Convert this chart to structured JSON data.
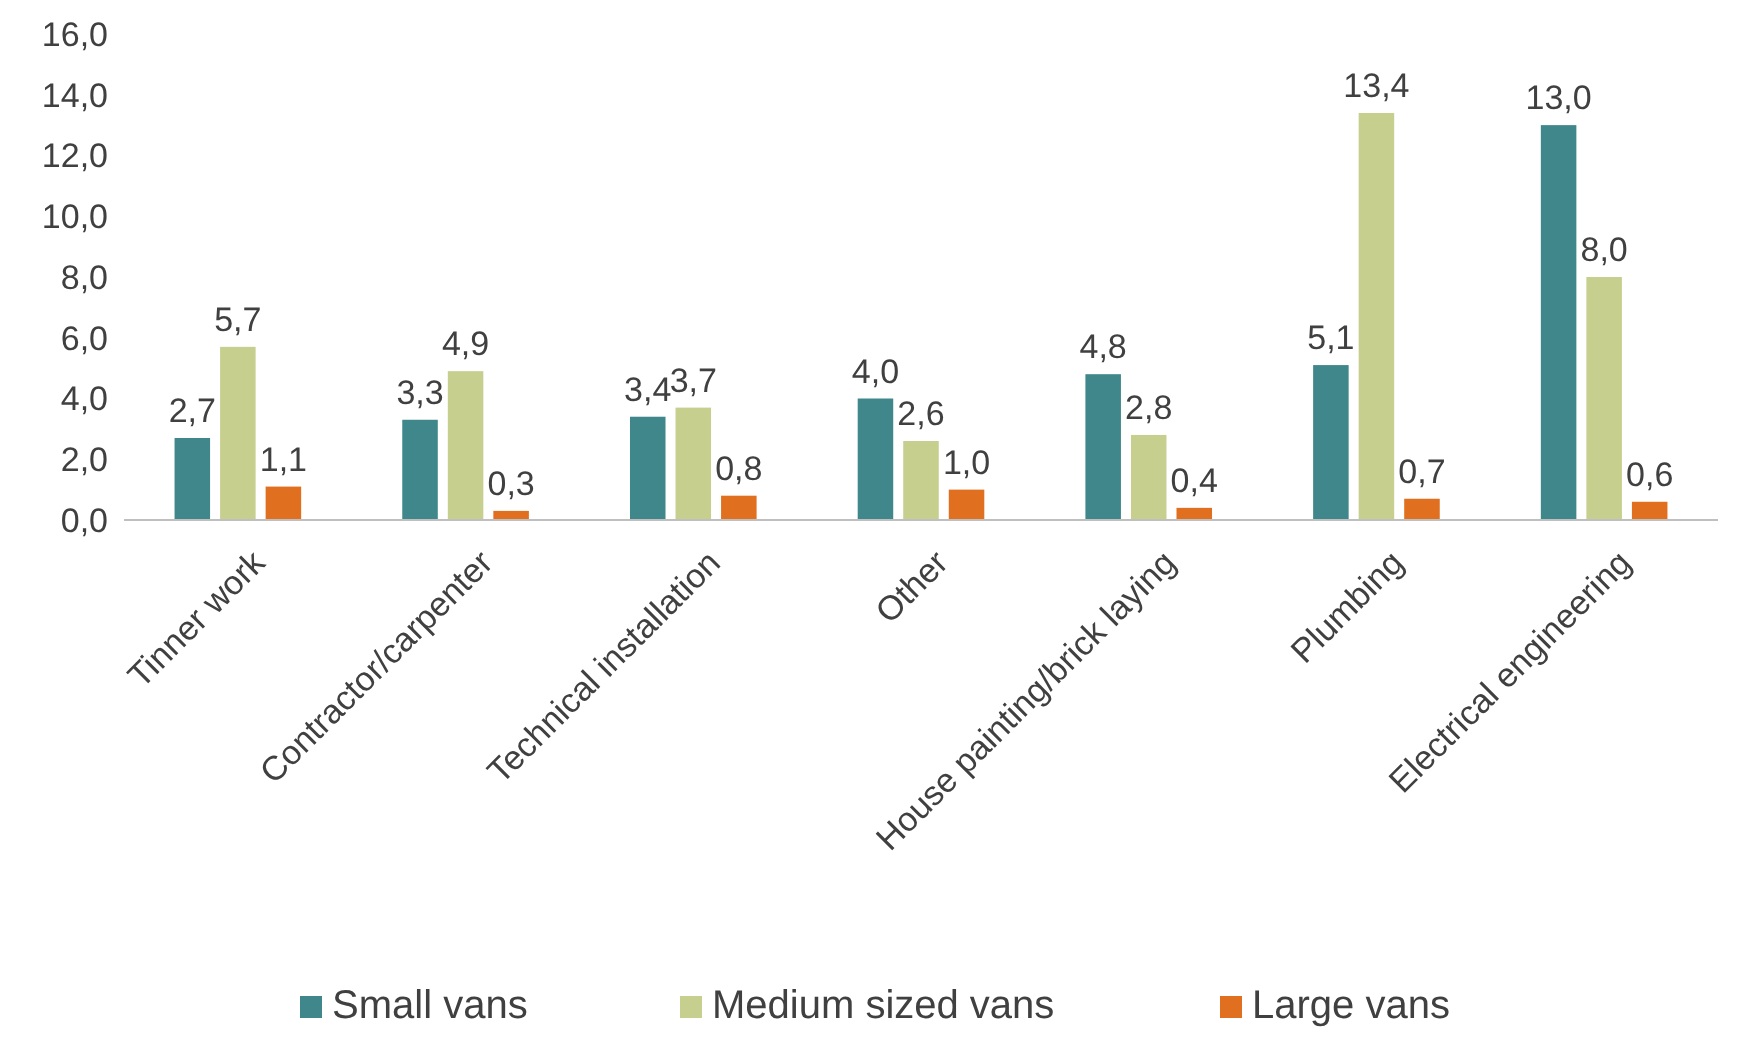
{
  "chart_data": {
    "type": "bar",
    "categories": [
      "Tinner work",
      "Contractor/carpenter",
      "Technical installation",
      "Other",
      "House painting/brick laying",
      "Plumbing",
      "Electrical engineering"
    ],
    "series": [
      {
        "name": "Small vans",
        "color": "#3f878b",
        "values": [
          2.7,
          3.3,
          3.4,
          4.0,
          4.8,
          5.1,
          13.0
        ],
        "value_labels": [
          "2,7",
          "3,3",
          "3,4",
          "4,0",
          "4,8",
          "5,1",
          "13,0"
        ]
      },
      {
        "name": "Medium sized vans",
        "color": "#c6cf8e",
        "values": [
          5.7,
          4.9,
          3.7,
          2.6,
          2.8,
          13.4,
          8.0
        ],
        "value_labels": [
          "5,7",
          "4,9",
          "3,7",
          "2,6",
          "2,8",
          "13,4",
          "8,0"
        ]
      },
      {
        "name": "Large vans",
        "color": "#e06f1f",
        "values": [
          1.1,
          0.3,
          0.8,
          1.0,
          0.4,
          0.7,
          0.6
        ],
        "value_labels": [
          "1,1",
          "0,3",
          "0,8",
          "1,0",
          "0,4",
          "0,7",
          "0,6"
        ]
      }
    ],
    "ylim": [
      0,
      16
    ],
    "yticks": [
      {
        "value": 0,
        "label": "0,0"
      },
      {
        "value": 2,
        "label": "2,0"
      },
      {
        "value": 4,
        "label": "4,0"
      },
      {
        "value": 6,
        "label": "6,0"
      },
      {
        "value": 8,
        "label": "8,0"
      },
      {
        "value": 10,
        "label": "10,0"
      },
      {
        "value": 12,
        "label": "12,0"
      },
      {
        "value": 14,
        "label": "14,0"
      },
      {
        "value": 16,
        "label": "16,0"
      }
    ],
    "grid": false,
    "legend": "bottom"
  }
}
